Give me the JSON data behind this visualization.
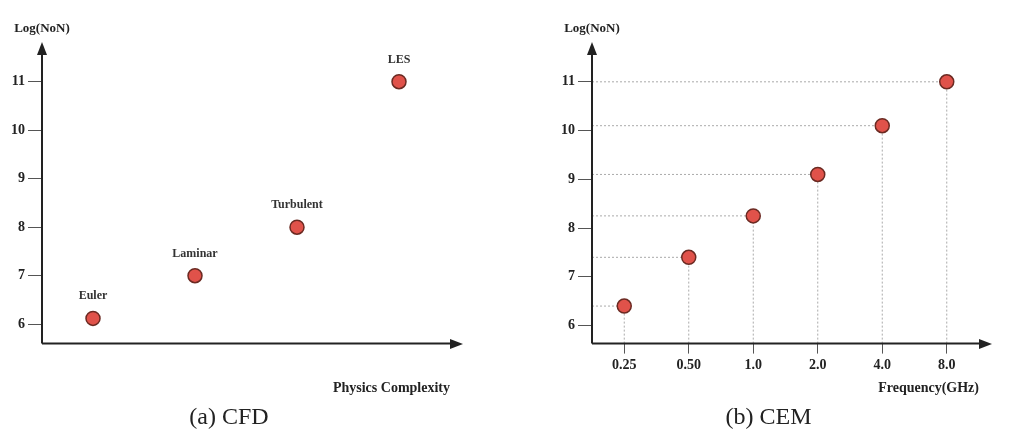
{
  "chart_data": [
    {
      "type": "scatter",
      "title": "(a) CFD",
      "xlabel": "Physics Complexity",
      "ylabel": "Log(NoN)",
      "categories": [
        null,
        null,
        null,
        null
      ],
      "values": [
        6.12,
        7,
        8,
        11
      ],
      "color": "#e0524a",
      "marker": "circle",
      "ylim": [
        5.6,
        11.55
      ],
      "yticks": [
        6,
        7,
        8,
        9,
        10,
        11
      ],
      "annotations": [
        {
          "text": "Euler",
          "y": 6.12
        },
        {
          "text": "Laminar",
          "y": 7
        },
        {
          "text": "Turbulent",
          "y": 8
        },
        {
          "text": "LES",
          "y": 11
        }
      ]
    },
    {
      "type": "lollipop",
      "title": "(b) CEM",
      "xlabel": "Frequency(GHz)",
      "ylabel": "Log(NoN)",
      "categories": [
        "0.25",
        "0.50",
        "1.0",
        "2.0",
        "4.0",
        "8.0"
      ],
      "values": [
        6.4,
        7.4,
        8.25,
        9.1,
        10.1,
        11
      ],
      "color": "#e0524a",
      "marker": "circle",
      "ylim": [
        5.63,
        11.55
      ],
      "yticks": [
        6,
        7,
        8,
        9,
        10,
        11
      ],
      "ref_lines": [
        {
          "axis": "y",
          "value": 6.4,
          "color": "#aaaaaa",
          "line_style": "dotted"
        },
        {
          "axis": "y",
          "value": 7.4,
          "color": "#aaaaaa",
          "line_style": "dotted"
        },
        {
          "axis": "y",
          "value": 8.25,
          "color": "#aaaaaa",
          "line_style": "dotted"
        },
        {
          "axis": "y",
          "value": 9.1,
          "color": "#aaaaaa",
          "line_style": "dotted"
        },
        {
          "axis": "y",
          "value": 10.1,
          "color": "#aaaaaa",
          "line_style": "dotted"
        },
        {
          "axis": "y",
          "value": 11,
          "color": "#aaaaaa",
          "line_style": "dotted"
        }
      ]
    }
  ]
}
